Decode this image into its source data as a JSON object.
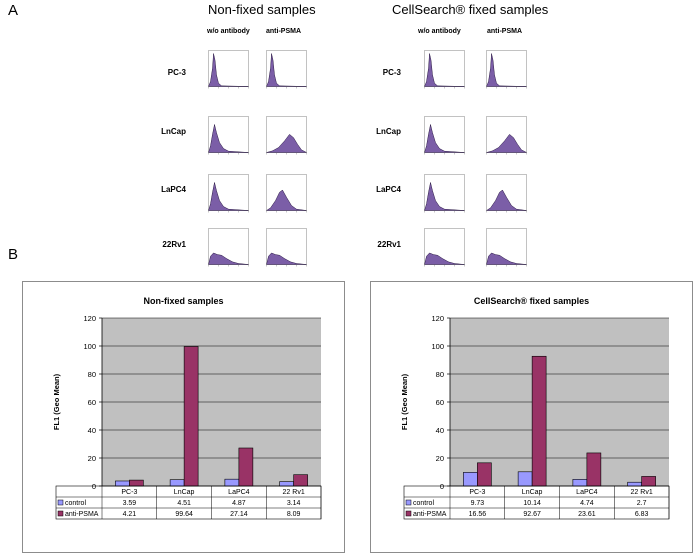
{
  "panel_a": {
    "letter": "A",
    "groups": [
      {
        "title": "Non-fixed samples",
        "col_heads": [
          "w/o antibody",
          "anti-PSMA"
        ]
      },
      {
        "title": "CellSearch® fixed samples",
        "col_heads": [
          "w/o antibody",
          "anti-PSMA"
        ]
      }
    ],
    "cell_lines": [
      "PC-3",
      "LnCap",
      "LaPC4",
      "22Rv1"
    ]
  },
  "panel_b": {
    "letter": "B"
  },
  "colors": {
    "control": "#9999ff",
    "anti_psma": "#993366",
    "histogram": "#7b5ea7",
    "plot_area": "#c0c0c0"
  },
  "chart_data": [
    {
      "type": "bar",
      "title": "Non-fixed samples",
      "ylabel": "FL1 (Geo Mean)",
      "xlabel": "",
      "ylim": [
        0,
        120
      ],
      "yticks": [
        0,
        20,
        40,
        60,
        80,
        100,
        120
      ],
      "categories": [
        "PC-3",
        "LnCap",
        "LaPC4",
        "22 Rv1"
      ],
      "series": [
        {
          "name": "control",
          "values": [
            3.59,
            4.51,
            4.87,
            3.14
          ],
          "labels": [
            "3.59",
            "4.51",
            "4.87",
            "3.14"
          ]
        },
        {
          "name": "anti-PSMA",
          "values": [
            4.21,
            99.64,
            27.14,
            8.09
          ],
          "labels": [
            "4.21",
            "99.64",
            "27.14",
            "8.09"
          ]
        }
      ]
    },
    {
      "type": "bar",
      "title": "CellSearch® fixed samples",
      "ylabel": "FL1 (Geo Mean)",
      "xlabel": "",
      "ylim": [
        0,
        120
      ],
      "yticks": [
        0,
        20,
        40,
        60,
        80,
        100,
        120
      ],
      "categories": [
        "PC-3",
        "LnCap",
        "LaPC4",
        "22 Rv1"
      ],
      "series": [
        {
          "name": "control",
          "values": [
            9.73,
            10.14,
            4.74,
            2.7
          ],
          "labels": [
            "9.73",
            "10.14",
            "4.74",
            "2.7"
          ]
        },
        {
          "name": "anti-PSMA",
          "values": [
            16.56,
            92.67,
            23.61,
            6.83
          ],
          "labels": [
            "16.56",
            "92.67",
            "23.61",
            "6.83"
          ]
        }
      ]
    }
  ]
}
